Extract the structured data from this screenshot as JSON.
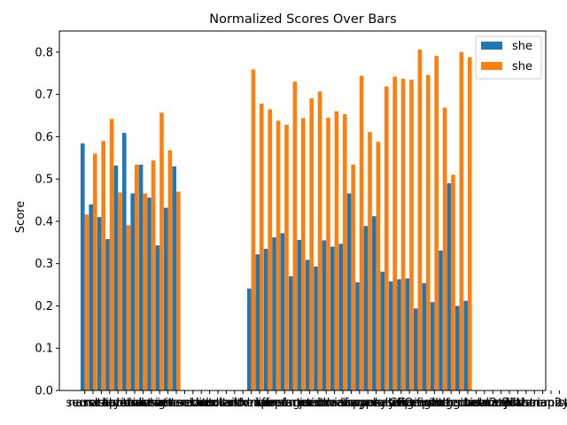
{
  "chart_data": {
    "type": "bar",
    "title": "Normalized Scores Over Bars",
    "xlabel": "",
    "ylabel": "Score",
    "ylim": [
      0,
      0.85
    ],
    "yticks": [
      "0.0",
      "0.1",
      "0.2",
      "0.3",
      "0.4",
      "0.5",
      "0.6",
      "0.7",
      "0.8"
    ],
    "grid": false,
    "legend_position": "top-right",
    "categories": [
      "nurse",
      "secretary",
      "assistant",
      "cleaner",
      "receptionist",
      "librarian",
      "hairdresser",
      "baker",
      "cashier",
      "designer",
      "writer",
      "counselor",
      "attendant",
      "teacher",
      "editor",
      "accountant",
      "auditor",
      "clerk",
      "tailor",
      "housekeeper",
      "sheriff",
      "driver",
      "mover",
      "laborer",
      "carpenter",
      "construction",
      "farmer",
      "guard",
      "janitor",
      "mechanic",
      "chief",
      "developer",
      "manager",
      "lawyer",
      "cook",
      "supervisor",
      "analyst",
      "physician",
      "CEO",
      "salesperson",
      "engineer",
      "firefighter",
      "pilot",
      "architect",
      "surgeon",
      "scientist",
      "engineer2",
      "technician",
      "worker",
      "dancer",
      "model",
      "stylist",
      "florist",
      "planner",
      "librarian2",
      "therapist",
      "nanny",
      "manicurist"
    ],
    "series": [
      {
        "name": "she",
        "color": "#1f77b4",
        "values": [
          0.584,
          0.44,
          0.41,
          0.358,
          0.532,
          0.609,
          0.466,
          0.534,
          0.456,
          0.343,
          0.432,
          0.53,
          null,
          null,
          null,
          null,
          null,
          null,
          null,
          null,
          0.241,
          0.322,
          0.335,
          0.362,
          0.372,
          0.27,
          0.356,
          0.309,
          0.293,
          0.355,
          0.34,
          0.347,
          0.466,
          0.256,
          0.389,
          0.412,
          0.281,
          0.258,
          0.263,
          0.265,
          0.194,
          0.254,
          0.209,
          0.331,
          0.49,
          0.2,
          0.212,
          null,
          null,
          null,
          null,
          null,
          null,
          null,
          null,
          null,
          null,
          null
        ]
      },
      {
        "name": "she",
        "color": "#ff7f0e",
        "values": [
          0.416,
          0.56,
          0.59,
          0.642,
          0.468,
          0.391,
          0.534,
          0.466,
          0.544,
          0.657,
          0.568,
          0.47,
          null,
          null,
          null,
          null,
          null,
          null,
          null,
          null,
          0.759,
          0.678,
          0.665,
          0.638,
          0.628,
          0.73,
          0.644,
          0.691,
          0.707,
          0.645,
          0.66,
          0.653,
          0.534,
          0.744,
          0.611,
          0.588,
          0.719,
          0.742,
          0.737,
          0.735,
          0.806,
          0.746,
          0.791,
          0.669,
          0.51,
          0.8,
          0.788,
          null,
          null,
          null,
          null,
          null,
          null,
          null,
          null,
          null,
          null,
          null
        ]
      }
    ]
  }
}
